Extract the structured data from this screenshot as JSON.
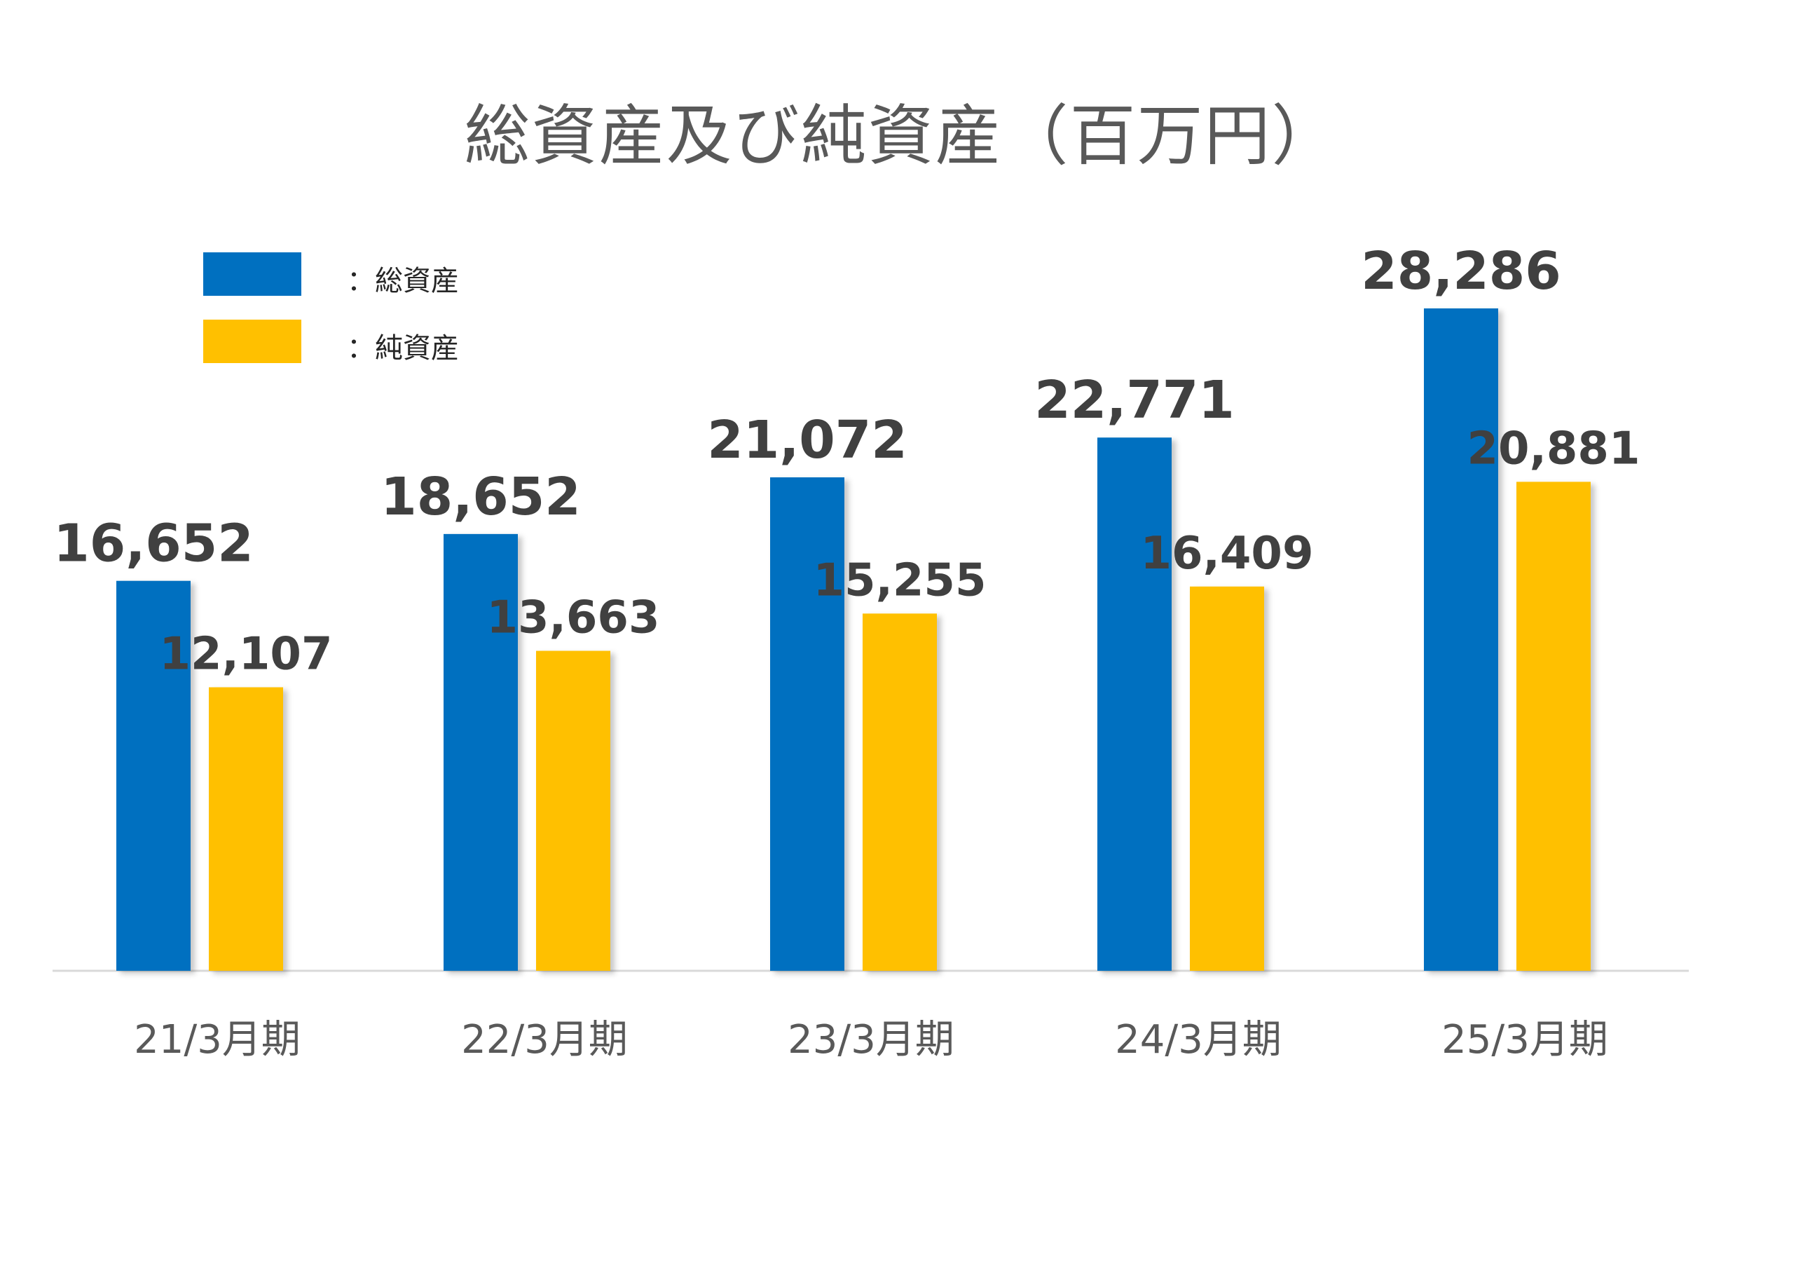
{
  "chart_data": {
    "type": "bar",
    "title": "総資産及び純資産（百万円）",
    "categories": [
      "21/3月期",
      "22/3月期",
      "23/3月期",
      "24/3月期",
      "25/3月期"
    ],
    "series": [
      {
        "name": "：総資産",
        "color": "#0070C0",
        "values": [
          16652,
          18652,
          21072,
          22771,
          28286
        ],
        "labels": [
          "16,652",
          "18,652",
          "21,072",
          "22,771",
          "28,286"
        ]
      },
      {
        "name": "：純資産",
        "color": "#FFC000",
        "values": [
          12107,
          13663,
          15255,
          16409,
          20881
        ],
        "labels": [
          "12,107",
          "13,663",
          "15,255",
          "16,409",
          "20,881"
        ]
      }
    ],
    "ylim": [
      0,
      30000
    ],
    "grid": false,
    "legend_position": "top-left",
    "xlabel": "",
    "ylabel": ""
  }
}
